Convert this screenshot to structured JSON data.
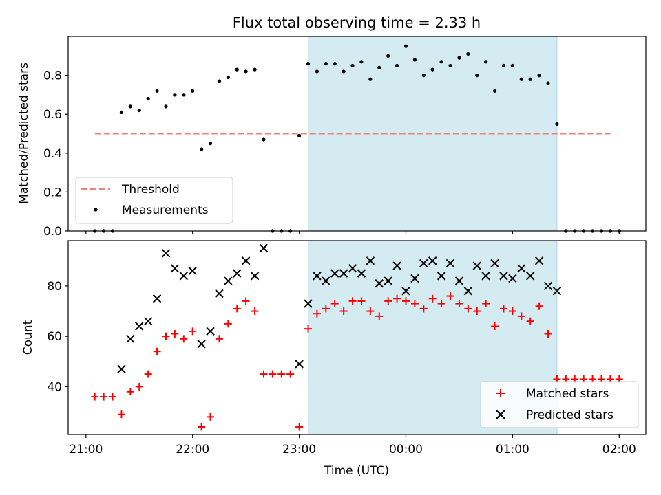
{
  "chart_data": [
    {
      "type": "scatter",
      "title": "Flux total observing time = 2.33 h",
      "ylabel": "Matched/Predicted stars",
      "xlabel": "",
      "xlim": [
        "20:50",
        "02:15"
      ],
      "ylim": [
        0,
        1.0
      ],
      "yticks": [
        0.0,
        0.2,
        0.4,
        0.6,
        0.8
      ],
      "ytick_labels": [
        "0.0",
        "0.2",
        "0.4",
        "0.6",
        "0.8"
      ],
      "shaded_region": {
        "start": "23:05",
        "end": "01:25",
        "color": "#d4ebf2"
      },
      "threshold": {
        "name": "Threshold",
        "value": 0.5,
        "x_start": "21:05",
        "x_end": "01:55",
        "color": "#f08080",
        "style": "dashed"
      },
      "series": [
        {
          "name": "Measurements",
          "marker": "dot",
          "color": "#000000",
          "x": [
            "21:05",
            "21:10",
            "21:15",
            "21:20",
            "21:25",
            "21:30",
            "21:35",
            "21:40",
            "21:45",
            "21:50",
            "21:55",
            "22:00",
            "22:05",
            "22:10",
            "22:15",
            "22:20",
            "22:25",
            "22:30",
            "22:35",
            "22:40",
            "22:45",
            "22:50",
            "22:55",
            "23:00",
            "23:05",
            "23:10",
            "23:15",
            "23:20",
            "23:25",
            "23:30",
            "23:35",
            "23:40",
            "23:45",
            "23:50",
            "23:55",
            "00:00",
            "00:05",
            "00:10",
            "00:15",
            "00:20",
            "00:25",
            "00:30",
            "00:35",
            "00:40",
            "00:45",
            "00:50",
            "00:55",
            "01:00",
            "01:05",
            "01:10",
            "01:15",
            "01:20",
            "01:25",
            "01:30",
            "01:35",
            "01:40",
            "01:45",
            "01:50",
            "01:55",
            "02:00"
          ],
          "y": [
            0.0,
            0.0,
            0.0,
            0.61,
            0.64,
            0.62,
            0.68,
            0.72,
            0.64,
            0.7,
            0.7,
            0.72,
            0.42,
            0.45,
            0.77,
            0.79,
            0.83,
            0.82,
            0.83,
            0.47,
            0.0,
            0.0,
            0.0,
            0.49,
            0.86,
            0.82,
            0.86,
            0.86,
            0.82,
            0.85,
            0.87,
            0.78,
            0.84,
            0.9,
            0.85,
            0.95,
            0.88,
            0.8,
            0.83,
            0.87,
            0.85,
            0.89,
            0.91,
            0.8,
            0.87,
            0.72,
            0.85,
            0.85,
            0.78,
            0.78,
            0.8,
            0.76,
            0.55,
            0.0,
            0.0,
            0.0,
            0.0,
            0.0,
            0.0,
            0.0
          ]
        }
      ],
      "legend": {
        "placement": "lower-left",
        "entries": [
          "Threshold",
          "Measurements"
        ]
      }
    },
    {
      "type": "scatter",
      "title": "",
      "xlabel": "Time (UTC)",
      "ylabel": "Count",
      "xlim": [
        "20:50",
        "02:15"
      ],
      "ylim": [
        21,
        98
      ],
      "yticks": [
        40,
        60,
        80
      ],
      "ytick_labels": [
        "40",
        "60",
        "80"
      ],
      "xticks": [
        "21:00",
        "22:00",
        "23:00",
        "00:00",
        "01:00",
        "02:00"
      ],
      "shaded_region": {
        "start": "23:05",
        "end": "01:25",
        "color": "#d4ebf2"
      },
      "series": [
        {
          "name": "Matched stars",
          "marker": "plus",
          "color": "#ff0000",
          "x": [
            "21:05",
            "21:10",
            "21:15",
            "21:20",
            "21:25",
            "21:30",
            "21:35",
            "21:40",
            "21:45",
            "21:50",
            "21:55",
            "22:00",
            "22:05",
            "22:10",
            "22:15",
            "22:20",
            "22:25",
            "22:30",
            "22:35",
            "22:40",
            "22:45",
            "22:50",
            "22:55",
            "23:00",
            "23:05",
            "23:10",
            "23:15",
            "23:20",
            "23:25",
            "23:30",
            "23:35",
            "23:40",
            "23:45",
            "23:50",
            "23:55",
            "00:00",
            "00:05",
            "00:10",
            "00:15",
            "00:20",
            "00:25",
            "00:30",
            "00:35",
            "00:40",
            "00:45",
            "00:50",
            "00:55",
            "01:00",
            "01:05",
            "01:10",
            "01:15",
            "01:20",
            "01:25",
            "01:30",
            "01:35",
            "01:40",
            "01:45",
            "01:50",
            "01:55",
            "02:00"
          ],
          "y": [
            36,
            36,
            36,
            29,
            38,
            40,
            45,
            54,
            60,
            61,
            59,
            62,
            24,
            28,
            59,
            65,
            71,
            74,
            70,
            45,
            45,
            45,
            45,
            24,
            63,
            69,
            71,
            73,
            70,
            74,
            74,
            70,
            68,
            74,
            75,
            74,
            73,
            71,
            75,
            73,
            76,
            73,
            71,
            70,
            73,
            64,
            71,
            70,
            68,
            66,
            72,
            61,
            43,
            43,
            43,
            43,
            43,
            43,
            43,
            43
          ]
        },
        {
          "name": "Predicted stars",
          "marker": "x",
          "color": "#000000",
          "x": [
            "21:20",
            "21:25",
            "21:30",
            "21:35",
            "21:40",
            "21:45",
            "21:50",
            "21:55",
            "22:00",
            "22:05",
            "22:10",
            "22:15",
            "22:20",
            "22:25",
            "22:30",
            "22:35",
            "22:40",
            "23:00",
            "23:05",
            "23:10",
            "23:15",
            "23:20",
            "23:25",
            "23:30",
            "23:35",
            "23:40",
            "23:45",
            "23:50",
            "23:55",
            "00:00",
            "00:05",
            "00:10",
            "00:15",
            "00:20",
            "00:25",
            "00:30",
            "00:35",
            "00:40",
            "00:45",
            "00:50",
            "00:55",
            "01:00",
            "01:05",
            "01:10",
            "01:15",
            "01:20",
            "01:25"
          ],
          "y": [
            47,
            59,
            64,
            66,
            75,
            93,
            87,
            84,
            86,
            57,
            62,
            77,
            82,
            85,
            90,
            84,
            95,
            49,
            73,
            84,
            82,
            85,
            85,
            87,
            85,
            90,
            81,
            82,
            88,
            78,
            83,
            89,
            90,
            84,
            89,
            82,
            78,
            88,
            84,
            89,
            84,
            83,
            87,
            84,
            90,
            80,
            78
          ]
        }
      ],
      "legend": {
        "placement": "lower-right",
        "entries": [
          "Matched stars",
          "Predicted stars"
        ]
      }
    }
  ]
}
